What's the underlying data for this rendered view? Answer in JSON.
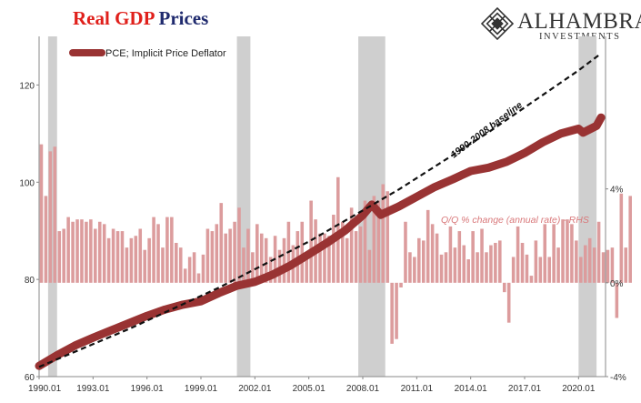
{
  "title": {
    "part1": "Real GDP",
    "part2": "Prices"
  },
  "brand": {
    "name": "ALHAMBRA",
    "subtitle": "INVESTMENTS",
    "logo_icon": "alhambra-diamond-logo"
  },
  "chart_data": {
    "type": "line",
    "legend": {
      "label": "PCE; Implicit Price Deflator",
      "placement": "top-left",
      "color": "#993333"
    },
    "x_ticks": [
      "1990.01",
      "1993.01",
      "1996.01",
      "1999.01",
      "2002.01",
      "2005.01",
      "2008.01",
      "2011.01",
      "2014.01",
      "2017.01",
      "2020.01"
    ],
    "y_left": {
      "range": [
        60,
        130
      ],
      "ticks": [
        60,
        80,
        100,
        120
      ]
    },
    "y_right": {
      "range": [
        -4,
        10.5
      ],
      "ticks": [
        "-4%",
        "0%",
        "4%"
      ]
    },
    "recessions": [
      [
        "1990.3",
        "1991.1"
      ],
      [
        "2001.1",
        "2001.4"
      ],
      [
        "2007.4",
        "2009.2"
      ],
      [
        "2020.1",
        "2021.1"
      ]
    ],
    "series": [
      {
        "name": "PCE; Implicit Price Deflator",
        "axis": "left",
        "color": "#993333",
        "x": [
          "1990.01",
          "1991.01",
          "1992.01",
          "1993.01",
          "1994.01",
          "1995.01",
          "1996.01",
          "1997.01",
          "1998.01",
          "1999.01",
          "2000.01",
          "2001.01",
          "2002.01",
          "2003.01",
          "2004.01",
          "2005.01",
          "2006.01",
          "2007.01",
          "2008.01",
          "2008.3",
          "2009.01",
          "2010.01",
          "2011.01",
          "2012.01",
          "2013.01",
          "2014.01",
          "2015.01",
          "2016.01",
          "2017.01",
          "2018.01",
          "2019.01",
          "2020.01",
          "2020.2",
          "2021.01",
          "2021.2"
        ],
        "values": [
          62.2,
          64.4,
          66.4,
          68.0,
          69.5,
          71.0,
          72.5,
          73.8,
          74.8,
          75.5,
          77.2,
          78.7,
          79.5,
          81.0,
          82.9,
          85.2,
          87.5,
          90.0,
          93.2,
          95.4,
          93.3,
          95.0,
          97.0,
          99.0,
          100.6,
          102.3,
          103.0,
          104.2,
          106.0,
          108.2,
          110.0,
          111.0,
          110.2,
          111.6,
          113.3
        ]
      },
      {
        "name": "1990-2008 baseline",
        "axis": "left",
        "style": "dashed",
        "color": "#111111",
        "x": [
          "1990.01",
          "1995.01",
          "2000.01",
          "2005.01",
          "2008.01",
          "2010.01",
          "2015.01",
          "2020.01",
          "2021.2"
        ],
        "values": [
          62.0,
          69.8,
          78.3,
          87.8,
          94.2,
          98.5,
          110.3,
          123.0,
          126.5
        ]
      },
      {
        "name": "Q/Q % change (annual rate) - RHS",
        "axis": "right",
        "type": "bar",
        "color": "#dc9c9d",
        "start": "1990.01",
        "frequency": "quarterly",
        "values": [
          5.9,
          3.7,
          5.6,
          5.8,
          2.2,
          2.3,
          2.8,
          2.6,
          2.7,
          2.7,
          2.6,
          2.7,
          2.3,
          2.6,
          2.5,
          1.9,
          2.3,
          2.2,
          2.2,
          1.5,
          1.9,
          2.0,
          2.3,
          1.4,
          1.9,
          2.8,
          2.5,
          1.5,
          2.8,
          2.8,
          1.7,
          1.5,
          0.6,
          1.1,
          1.3,
          0.4,
          1.2,
          2.3,
          2.2,
          2.5,
          3.4,
          2.1,
          2.3,
          2.6,
          3.2,
          1.5,
          2.3,
          1.3,
          2.5,
          2.1,
          1.9,
          1.1,
          2.0,
          1.4,
          1.9,
          2.6,
          1.6,
          2.2,
          2.6,
          1.1,
          3.5,
          2.7,
          2.1,
          2.1,
          2.0,
          2.9,
          4.5,
          2.6,
          1.9,
          3.2,
          2.2,
          2.4,
          3.5,
          1.4,
          3.7,
          3.5,
          4.2,
          3.9,
          -2.6,
          -2.4,
          -0.2,
          2.6,
          1.3,
          1.1,
          1.9,
          1.8,
          3.1,
          2.5,
          2.1,
          1.2,
          1.3,
          2.4,
          1.5,
          2.2,
          1.6,
          1.0,
          2.2,
          1.3,
          2.3,
          1.3,
          1.6,
          1.7,
          1.8,
          -0.4,
          -1.7,
          1.1,
          2.4,
          1.7,
          1.2,
          0.3,
          1.8,
          1.1,
          2.5,
          1.1,
          2.5,
          1.5,
          2.7,
          2.7,
          2.5,
          1.8,
          1.1,
          1.6,
          1.9,
          1.5,
          2.6,
          1.3,
          1.4,
          1.5,
          -1.5,
          3.8,
          1.5,
          3.7
        ]
      }
    ],
    "annotations": {
      "baseline": "1990-2008 baseline",
      "rhs": "Q/Q % change (annual rate) - RHS"
    },
    "colors": {
      "recession": "#cfcfcf",
      "line": "#993333",
      "bars": "#dc9c9d",
      "baseline": "#111111"
    }
  }
}
